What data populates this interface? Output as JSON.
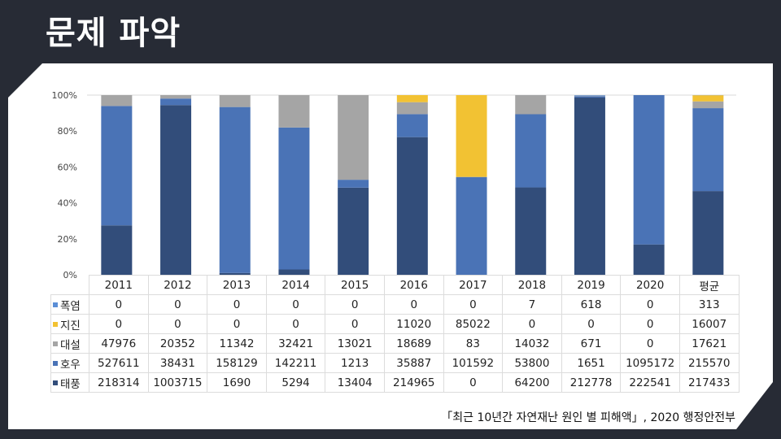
{
  "title": "문제 파악",
  "source": "「최근 10년간 자연재난 원인 별 피해액」, 2020 행정안전부",
  "chart_data": {
    "type": "bar",
    "stacked": "percent",
    "categories": [
      "2011",
      "2012",
      "2013",
      "2014",
      "2015",
      "2016",
      "2017",
      "2018",
      "2019",
      "2020",
      "평균"
    ],
    "yticks": [
      "0%",
      "20%",
      "40%",
      "60%",
      "80%",
      "100%"
    ],
    "ylim": [
      0,
      100
    ],
    "grid": false,
    "legend": "table-left",
    "series": [
      {
        "name": "폭염",
        "color": "#5b8ed6",
        "values": [
          0,
          0,
          0,
          0,
          0,
          0,
          0,
          7,
          618,
          0,
          313
        ]
      },
      {
        "name": "지진",
        "color": "#f2c233",
        "values": [
          0,
          0,
          0,
          0,
          0,
          11020,
          85022,
          0,
          0,
          0,
          16007
        ]
      },
      {
        "name": "대설",
        "color": "#a5a5a5",
        "values": [
          47976,
          20352,
          11342,
          32421,
          13021,
          18689,
          83,
          14032,
          671,
          0,
          17621
        ]
      },
      {
        "name": "호우",
        "color": "#4a73b6",
        "values": [
          527611,
          38431,
          158129,
          142211,
          1213,
          35887,
          101592,
          53800,
          1651,
          1095172,
          215570
        ]
      },
      {
        "name": "태풍",
        "color": "#324d7a",
        "values": [
          218314,
          1003715,
          1690,
          5294,
          13404,
          214965,
          0,
          64200,
          212778,
          222541,
          217433
        ]
      }
    ]
  }
}
